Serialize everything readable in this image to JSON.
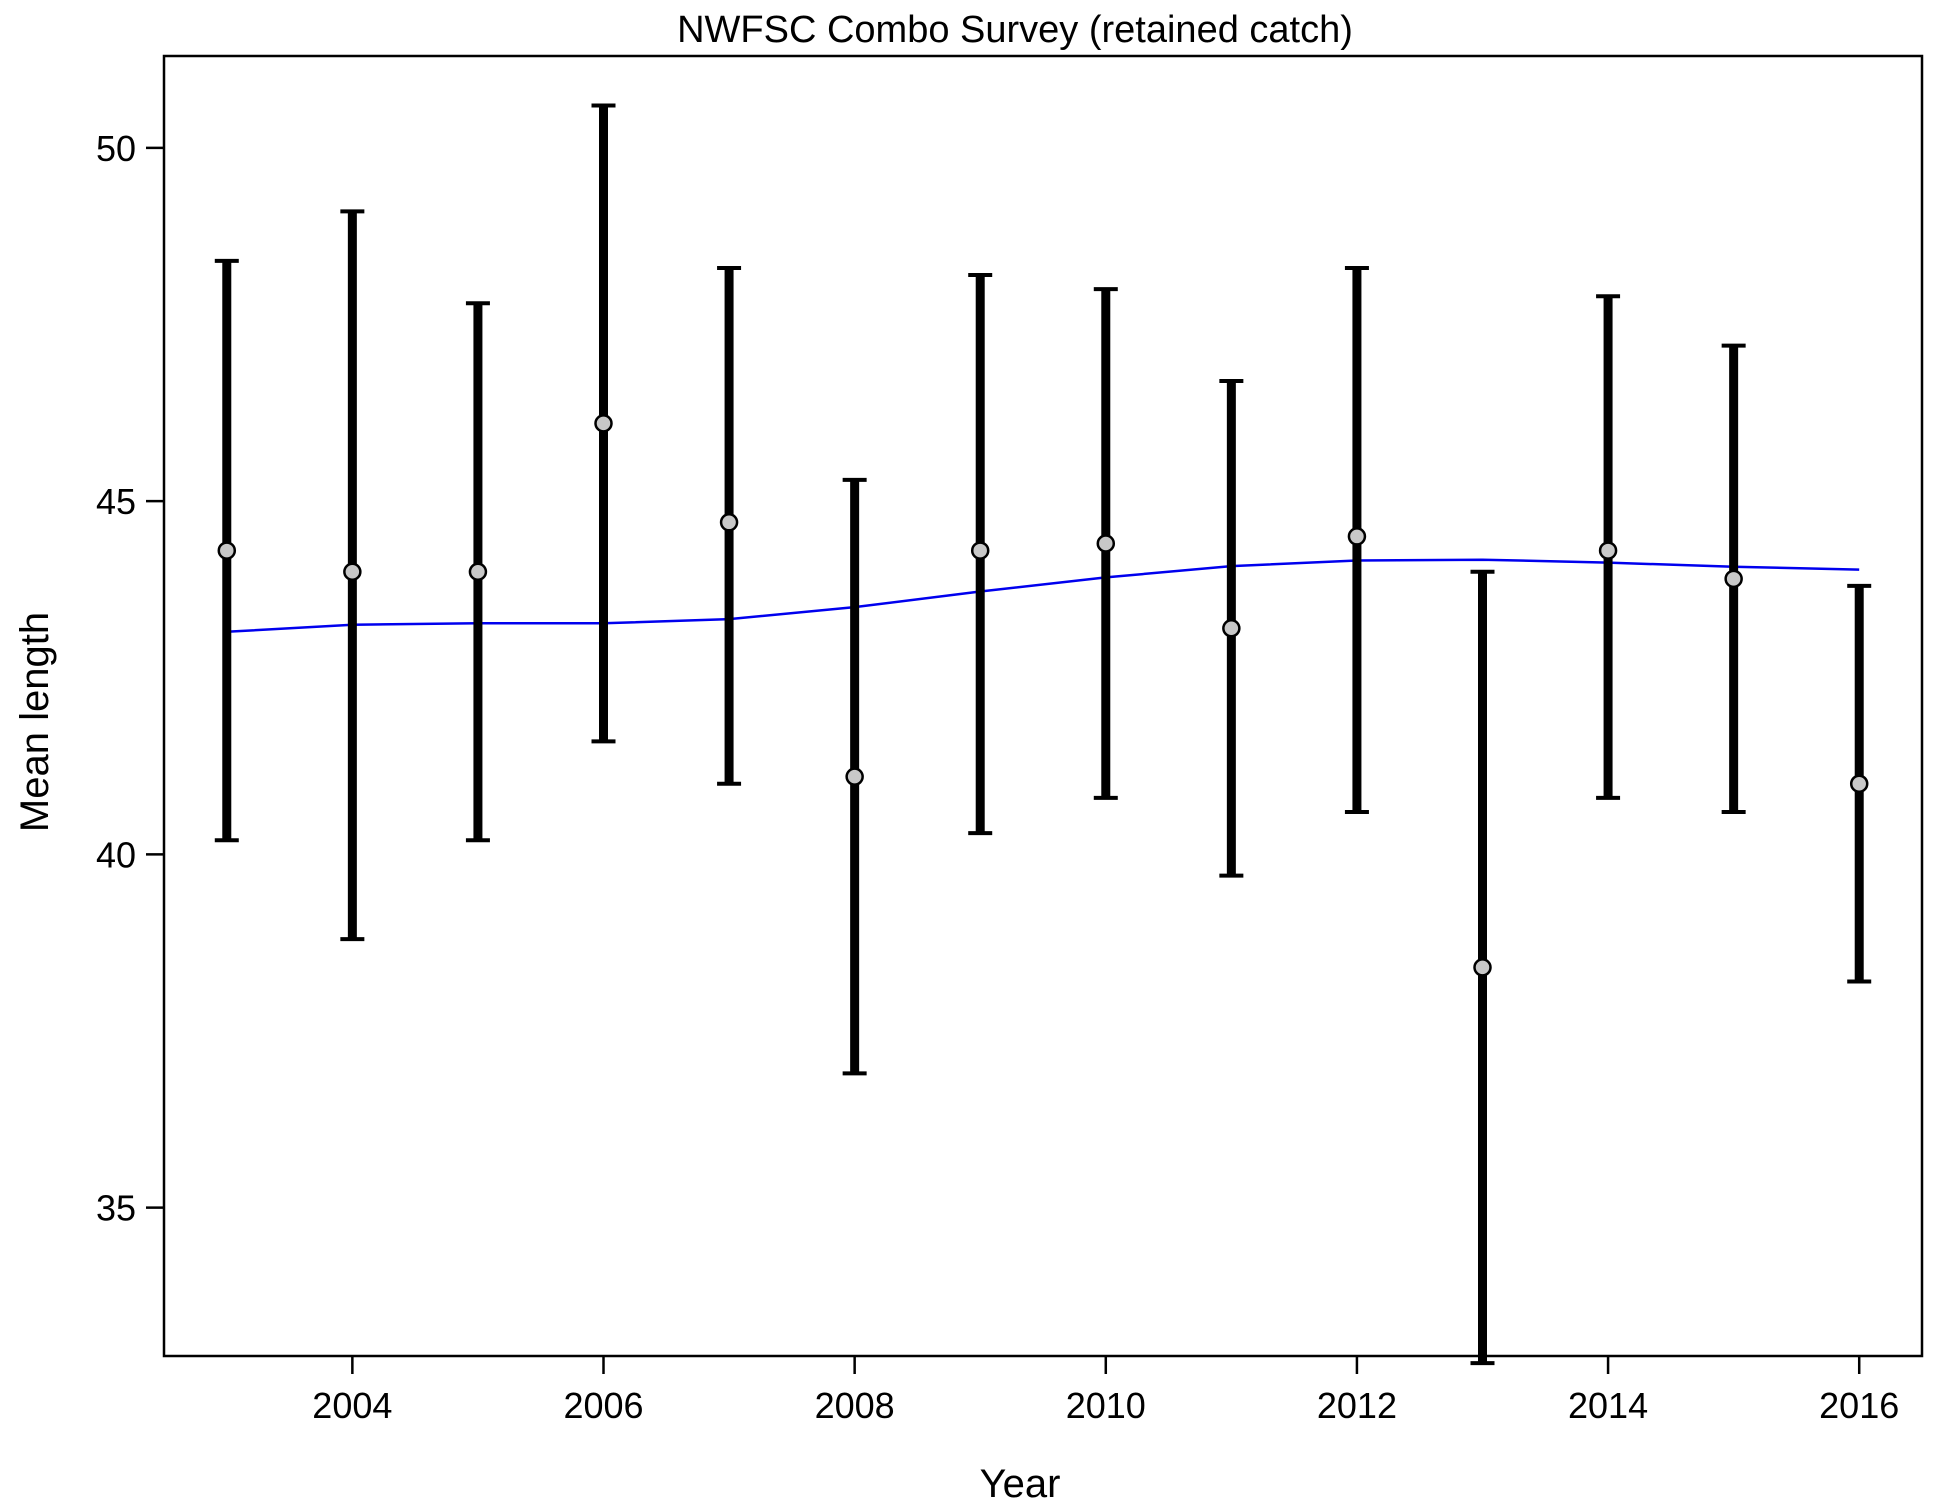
{
  "chart_data": {
    "type": "scatter",
    "title": "NWFSC Combo Survey (retained catch)",
    "xlabel": "Year",
    "ylabel": "Mean length",
    "xlim": [
      2002.5,
      2016.5
    ],
    "ylim": [
      32.9,
      51.3
    ],
    "xticks": [
      2004,
      2006,
      2008,
      2010,
      2012,
      2014,
      2016
    ],
    "yticks": [
      35,
      40,
      45,
      50
    ],
    "grid": false,
    "legend": "none",
    "points": [
      {
        "x": 2003,
        "y": 44.3,
        "lower": 40.2,
        "upper": 48.4
      },
      {
        "x": 2004,
        "y": 44.0,
        "lower": 38.8,
        "upper": 49.1
      },
      {
        "x": 2005,
        "y": 44.0,
        "lower": 40.2,
        "upper": 47.8
      },
      {
        "x": 2006,
        "y": 46.1,
        "lower": 41.6,
        "upper": 50.6
      },
      {
        "x": 2007,
        "y": 44.7,
        "lower": 41.0,
        "upper": 48.3
      },
      {
        "x": 2008,
        "y": 41.1,
        "lower": 36.9,
        "upper": 45.3
      },
      {
        "x": 2009,
        "y": 44.3,
        "lower": 40.3,
        "upper": 48.2
      },
      {
        "x": 2010,
        "y": 44.4,
        "lower": 40.8,
        "upper": 48.0
      },
      {
        "x": 2011,
        "y": 43.2,
        "lower": 39.7,
        "upper": 46.7
      },
      {
        "x": 2012,
        "y": 44.5,
        "lower": 40.6,
        "upper": 48.3
      },
      {
        "x": 2013,
        "y": 38.4,
        "lower": 32.8,
        "upper": 44.0
      },
      {
        "x": 2014,
        "y": 44.3,
        "lower": 40.8,
        "upper": 47.9
      },
      {
        "x": 2015,
        "y": 43.9,
        "lower": 40.6,
        "upper": 47.2
      },
      {
        "x": 2016,
        "y": 41.0,
        "lower": 38.2,
        "upper": 43.8
      }
    ],
    "trend": {
      "x": [
        2003,
        2004,
        2005,
        2006,
        2007,
        2008,
        2009,
        2010,
        2011,
        2012,
        2013,
        2014,
        2015,
        2016
      ],
      "y": [
        43.15,
        43.25,
        43.27,
        43.27,
        43.33,
        43.5,
        43.72,
        43.92,
        44.08,
        44.16,
        44.17,
        44.13,
        44.07,
        44.03
      ]
    },
    "colors": {
      "point_fill": "#c8c8c8",
      "point_stroke": "#000000",
      "errorbar": "#000000",
      "trend": "#0000ee",
      "axis": "#000000"
    }
  }
}
